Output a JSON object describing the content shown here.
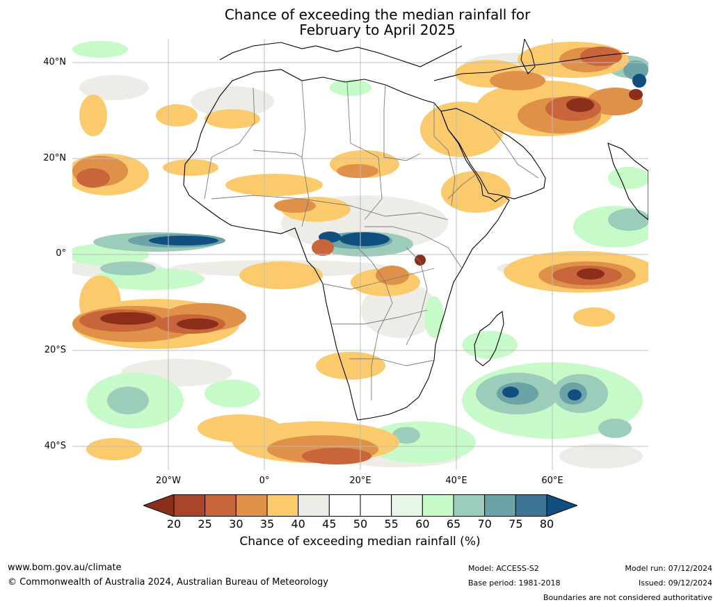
{
  "title": {
    "line1": "Chance of exceeding the median rainfall for",
    "line2": "February to April 2025"
  },
  "map": {
    "lat_labels": [
      "40°N",
      "20°N",
      "0°",
      "20°S",
      "40°S"
    ],
    "lon_labels": [
      "20°W",
      "0°",
      "20°E",
      "40°E",
      "60°E"
    ],
    "extent": {
      "lon_min": -40,
      "lon_max": 80,
      "lat_min": -45,
      "lat_max": 45
    }
  },
  "colorbar": {
    "ticks": [
      "20",
      "25",
      "30",
      "35",
      "40",
      "45",
      "50",
      "55",
      "60",
      "65",
      "70",
      "75",
      "80"
    ],
    "colors": [
      "#8b2f1b",
      "#a9452a",
      "#c8653a",
      "#df9049",
      "#fbca6c",
      "#edebe6",
      "#ffffff",
      "#ffffff",
      "#e6f6e8",
      "#c6fac8",
      "#9ccdbb",
      "#6ca3a6",
      "#3e7496",
      "#114f80"
    ],
    "title": "Chance of exceeding median rainfall (%)"
  },
  "footer": {
    "website": "www.bom.gov.au/climate",
    "copyright": "© Commonwealth of Australia 2024, Australian Bureau of Meteorology",
    "model": "Model: ACCESS-S2",
    "base_period": "Base period: 1981-2018",
    "model_run": "Model run: 07/12/2024",
    "issued": "Issued: 09/12/2024",
    "disclaimer": "Boundaries are not considered authoritative"
  }
}
